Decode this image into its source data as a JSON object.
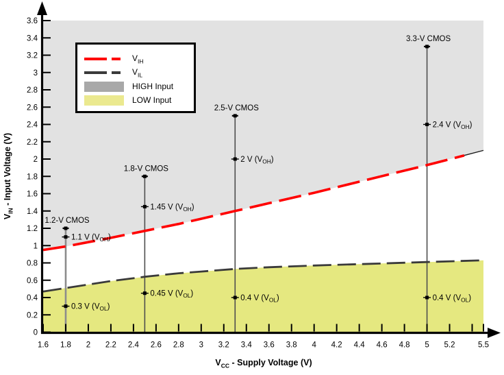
{
  "colors": {
    "vih_line": "#ff0000",
    "vil_line": "#3a3a3a",
    "high_region_fill": "#e2e2e2",
    "low_region_fill": "#e5e880",
    "legend_high_swatch": "#a8a8a8",
    "legend_low_swatch": "#ebe98f",
    "axis": "#000000",
    "end_segment": "#1a1a1a",
    "text": "#000000"
  },
  "legend": {
    "items": [
      {
        "label_main": "V",
        "label_sub": "IH",
        "type": "dash-line",
        "color_key": "vih_line"
      },
      {
        "label_main": "V",
        "label_sub": "IL",
        "type": "dash-line",
        "color_key": "vil_line"
      },
      {
        "label": "HIGH Input",
        "type": "swatch",
        "color_key": "legend_high_swatch"
      },
      {
        "label": "LOW Input",
        "type": "swatch",
        "color_key": "legend_low_swatch"
      }
    ]
  },
  "axes": {
    "x_title_main": "V",
    "x_title_sub": "CC",
    "x_title_rest": " - Supply Voltage (V)",
    "y_title_main": "V",
    "y_title_sub": "IN",
    "y_title_rest": " - Input Voltage (V)"
  },
  "chart_data": {
    "type": "line",
    "title": "",
    "xlabel": "V_{CC} - Supply Voltage (V)",
    "ylabel": "V_{IN} - Input Voltage (V)",
    "x_axis_range": [
      1.6,
      5.5
    ],
    "y_axis_range": [
      0,
      3.6
    ],
    "grid": false,
    "legend_position": "upper-left-inside",
    "series": [
      {
        "name": "V_{IH}",
        "style": "dashed",
        "color_key": "vih_line",
        "red_dash_end_x": 5.33,
        "points": [
          [
            1.6,
            0.95
          ],
          [
            1.8,
            0.99
          ],
          [
            2.0,
            1.04
          ],
          [
            2.2,
            1.09
          ],
          [
            2.5,
            1.17
          ],
          [
            2.8,
            1.25
          ],
          [
            3.0,
            1.31
          ],
          [
            3.3,
            1.4
          ],
          [
            3.6,
            1.49
          ],
          [
            4.0,
            1.61
          ],
          [
            4.5,
            1.77
          ],
          [
            5.0,
            1.93
          ],
          [
            5.5,
            2.1
          ]
        ]
      },
      {
        "name": "V_{IL}",
        "style": "dashed",
        "color_key": "vil_line",
        "points": [
          [
            1.6,
            0.47
          ],
          [
            1.8,
            0.51
          ],
          [
            2.0,
            0.55
          ],
          [
            2.2,
            0.59
          ],
          [
            2.5,
            0.64
          ],
          [
            2.8,
            0.68
          ],
          [
            3.0,
            0.7
          ],
          [
            3.3,
            0.73
          ],
          [
            3.6,
            0.75
          ],
          [
            4.0,
            0.77
          ],
          [
            4.5,
            0.79
          ],
          [
            5.0,
            0.81
          ],
          [
            5.5,
            0.83
          ]
        ]
      }
    ],
    "regions": [
      {
        "name": "HIGH Input",
        "fill_key": "high_region_fill",
        "between": "y=3.6 and V_IH curve"
      },
      {
        "name": "LOW Input",
        "fill_key": "low_region_fill",
        "between": "V_IL curve and y=0"
      }
    ],
    "devices": [
      {
        "name": "1.2-V CMOS",
        "x": 1.8,
        "top": 1.2,
        "line_color": "#8c8c8c",
        "line_width": 2.6,
        "markers": [
          {
            "y": 1.1,
            "label": "1.1 V (V_{OH})"
          },
          {
            "y": 0.3,
            "label": "0.3 V (V_{OL})"
          }
        ]
      },
      {
        "name": "1.8-V CMOS",
        "x": 2.5,
        "top": 1.8,
        "line_color": "#4d4d4d",
        "line_width": 1.6,
        "markers": [
          {
            "y": 1.45,
            "label": "1.45 V (V_{OH})"
          },
          {
            "y": 0.45,
            "label": "0.45 V (V_{OL})"
          }
        ]
      },
      {
        "name": "2.5-V CMOS",
        "x": 3.3,
        "top": 2.5,
        "line_color": "#4d4d4d",
        "line_width": 1.6,
        "markers": [
          {
            "y": 2.0,
            "label": "2 V (V_{OH})"
          },
          {
            "y": 0.4,
            "label": "0.4 V (V_{OL})"
          }
        ]
      },
      {
        "name": "3.3-V CMOS",
        "x": 5.0,
        "top": 3.3,
        "line_color": "#4d4d4d",
        "line_width": 1.6,
        "markers": [
          {
            "y": 2.4,
            "label": "2.4 V (V_{OH})"
          },
          {
            "y": 0.4,
            "label": "0.4 V (V_{OL})"
          }
        ]
      }
    ],
    "x_ticks": [
      {
        "v": 1.6,
        "label": "1.6"
      },
      {
        "v": 1.8,
        "label": "1.8"
      },
      {
        "v": 2.0,
        "label": "2"
      },
      {
        "v": 2.2,
        "label": "2.2"
      },
      {
        "v": 2.4,
        "label": "2.4"
      },
      {
        "v": 2.6,
        "label": "2.6"
      },
      {
        "v": 2.8,
        "label": "2.8"
      },
      {
        "v": 3.0,
        "label": "3"
      },
      {
        "v": 3.2,
        "label": "3.2"
      },
      {
        "v": 3.4,
        "label": "3.4"
      },
      {
        "v": 3.6,
        "label": "3.6"
      },
      {
        "v": 3.8,
        "label": "3.8"
      },
      {
        "v": 4.0,
        "label": "4"
      },
      {
        "v": 4.2,
        "label": "4.2"
      },
      {
        "v": 4.4,
        "label": "4.4"
      },
      {
        "v": 4.6,
        "label": "4.6"
      },
      {
        "v": 4.8,
        "label": "4.8"
      },
      {
        "v": 5.0,
        "label": "5"
      },
      {
        "v": 5.2,
        "label": "5.2"
      },
      {
        "v": 5.4,
        "label": ""
      },
      {
        "v": 5.5,
        "label": "5.5"
      }
    ],
    "y_ticks": [
      {
        "v": 0,
        "label": "0"
      },
      {
        "v": 0.2,
        "label": "0.2"
      },
      {
        "v": 0.4,
        "label": "0.4"
      },
      {
        "v": 0.6,
        "label": "0.6"
      },
      {
        "v": 0.8,
        "label": "0.8"
      },
      {
        "v": 1.0,
        "label": "1"
      },
      {
        "v": 1.2,
        "label": "1.2"
      },
      {
        "v": 1.4,
        "label": "1.4"
      },
      {
        "v": 1.6,
        "label": "1.6"
      },
      {
        "v": 1.8,
        "label": "1.8"
      },
      {
        "v": 2.0,
        "label": "2"
      },
      {
        "v": 2.2,
        "label": "2.2"
      },
      {
        "v": 2.4,
        "label": "2.4"
      },
      {
        "v": 2.6,
        "label": "2.6"
      },
      {
        "v": 2.8,
        "label": "2.8"
      },
      {
        "v": 3.0,
        "label": "3"
      },
      {
        "v": 3.2,
        "label": "3.2"
      },
      {
        "v": 3.4,
        "label": "3.4"
      },
      {
        "v": 3.6,
        "label": "3.6"
      }
    ]
  }
}
